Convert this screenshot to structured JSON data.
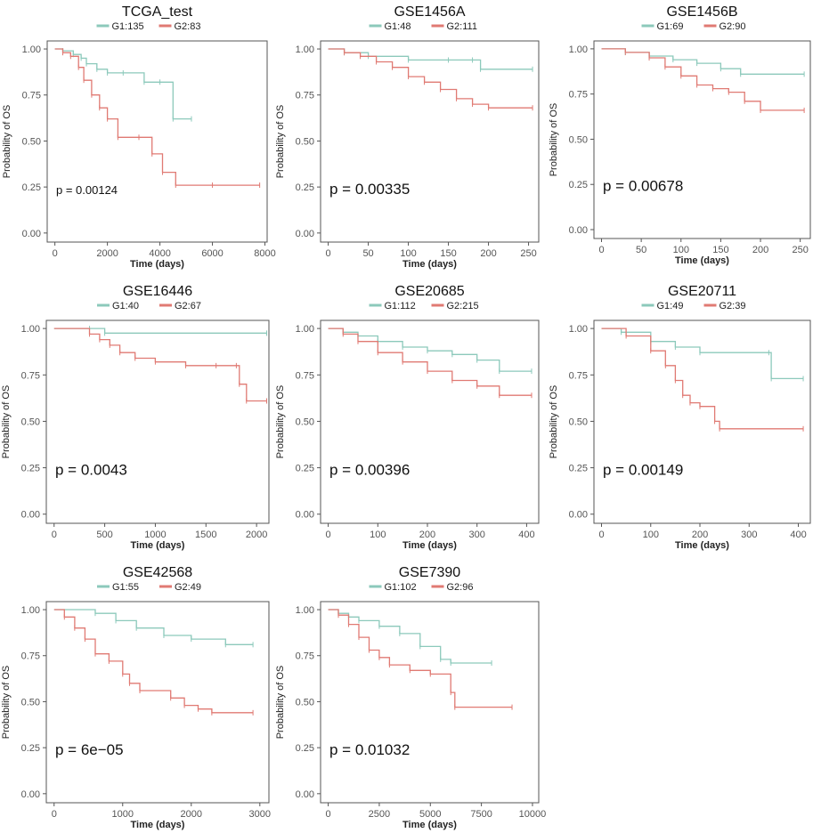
{
  "figure": {
    "ylabel": "Probability of OS",
    "xlabel": "Time (days)"
  },
  "colors": {
    "g1": "#8cc9bb",
    "g2": "#e07a73",
    "axis": "#333333",
    "tick": "#555555",
    "frame": "#555555"
  },
  "chart_data": [
    {
      "type": "line",
      "title": "TCGA_test",
      "legend": [
        "G1:135",
        "G2:83"
      ],
      "pvalue": "p =  0.00124",
      "xlabel": "Time (days)",
      "ylabel": "Probability of OS",
      "xlim": [
        0,
        8000
      ],
      "xticks": [
        0,
        2000,
        4000,
        6000,
        8000
      ],
      "ylim": [
        0,
        1
      ],
      "yticks": [
        0.0,
        0.25,
        0.5,
        0.75,
        1.0
      ],
      "series": [
        {
          "name": "G1",
          "x": [
            0,
            300,
            700,
            1000,
            1200,
            1600,
            2000,
            2600,
            3400,
            4000,
            4500,
            5200
          ],
          "y": [
            1.0,
            0.99,
            0.97,
            0.95,
            0.92,
            0.89,
            0.87,
            0.87,
            0.82,
            0.82,
            0.62,
            0.62
          ]
        },
        {
          "name": "G2",
          "x": [
            0,
            300,
            600,
            900,
            1100,
            1400,
            1700,
            2000,
            2400,
            3200,
            3700,
            4100,
            4600,
            6000,
            7800
          ],
          "y": [
            1.0,
            0.98,
            0.96,
            0.9,
            0.83,
            0.75,
            0.68,
            0.62,
            0.52,
            0.52,
            0.43,
            0.33,
            0.26,
            0.26,
            0.26
          ]
        }
      ]
    },
    {
      "type": "line",
      "title": "GSE1456A",
      "legend": [
        "G1:48",
        "G2:111"
      ],
      "pvalue": "p =  0.00335",
      "xlabel": "Time (days)",
      "ylabel": "Probability of OS",
      "xlim": [
        0,
        260
      ],
      "xticks": [
        0,
        50,
        100,
        150,
        200,
        250
      ],
      "ylim": [
        0,
        1
      ],
      "yticks": [
        0.0,
        0.25,
        0.5,
        0.75,
        1.0
      ],
      "series": [
        {
          "name": "G1",
          "x": [
            0,
            20,
            50,
            100,
            150,
            180,
            190,
            255
          ],
          "y": [
            1.0,
            0.98,
            0.96,
            0.94,
            0.94,
            0.94,
            0.89,
            0.89
          ]
        },
        {
          "name": "G2",
          "x": [
            0,
            20,
            40,
            60,
            80,
            100,
            120,
            140,
            160,
            180,
            200,
            255
          ],
          "y": [
            1.0,
            0.98,
            0.96,
            0.93,
            0.9,
            0.85,
            0.82,
            0.78,
            0.73,
            0.7,
            0.68,
            0.68
          ]
        }
      ]
    },
    {
      "type": "line",
      "title": "GSE1456B",
      "legend": [
        "G1:69",
        "G2:90"
      ],
      "pvalue": "p =  0.00678",
      "xlabel": "Time (days)",
      "ylabel": "Probability of OS",
      "xlim": [
        0,
        260
      ],
      "xticks": [
        0,
        50,
        100,
        150,
        200,
        250
      ],
      "ylim": [
        0,
        1
      ],
      "yticks": [
        0.0,
        0.25,
        0.5,
        0.75,
        1.0
      ],
      "series": [
        {
          "name": "G1",
          "x": [
            0,
            30,
            60,
            90,
            120,
            150,
            175,
            255
          ],
          "y": [
            1.0,
            0.98,
            0.96,
            0.94,
            0.92,
            0.89,
            0.86,
            0.86
          ]
        },
        {
          "name": "G2",
          "x": [
            0,
            30,
            60,
            80,
            100,
            120,
            140,
            160,
            180,
            200,
            255
          ],
          "y": [
            1.0,
            0.98,
            0.95,
            0.9,
            0.85,
            0.8,
            0.78,
            0.76,
            0.71,
            0.66,
            0.66
          ]
        }
      ]
    },
    {
      "type": "line",
      "title": "GSE16446",
      "legend": [
        "G1:40",
        "G2:67"
      ],
      "pvalue": "p =  0.0043",
      "xlabel": "Time (days)",
      "ylabel": "Probability of OS",
      "xlim": [
        0,
        2100
      ],
      "xticks": [
        0,
        500,
        1000,
        1500,
        2000
      ],
      "ylim": [
        0,
        1
      ],
      "yticks": [
        0.0,
        0.25,
        0.5,
        0.75,
        1.0
      ],
      "series": [
        {
          "name": "G1",
          "x": [
            0,
            350,
            500,
            2100
          ],
          "y": [
            1.0,
            1.0,
            0.975,
            0.975
          ]
        },
        {
          "name": "G2",
          "x": [
            0,
            350,
            450,
            550,
            650,
            800,
            1000,
            1300,
            1600,
            1800,
            1830,
            1900,
            2100
          ],
          "y": [
            1.0,
            0.97,
            0.94,
            0.91,
            0.87,
            0.84,
            0.82,
            0.8,
            0.8,
            0.8,
            0.7,
            0.61,
            0.61
          ]
        }
      ]
    },
    {
      "type": "line",
      "title": "GSE20685",
      "legend": [
        "G1:112",
        "G2:215"
      ],
      "pvalue": "p =  0.00396",
      "xlabel": "Time (days)",
      "ylabel": "Probability of OS",
      "xlim": [
        0,
        420
      ],
      "xticks": [
        0,
        100,
        200,
        300,
        400
      ],
      "ylim": [
        0,
        1
      ],
      "yticks": [
        0.0,
        0.25,
        0.5,
        0.75,
        1.0
      ],
      "series": [
        {
          "name": "G1",
          "x": [
            0,
            30,
            60,
            100,
            150,
            200,
            250,
            300,
            345,
            410
          ],
          "y": [
            1.0,
            0.98,
            0.96,
            0.93,
            0.9,
            0.88,
            0.86,
            0.83,
            0.77,
            0.77
          ]
        },
        {
          "name": "G2",
          "x": [
            0,
            30,
            60,
            100,
            150,
            200,
            250,
            300,
            345,
            410
          ],
          "y": [
            1.0,
            0.97,
            0.93,
            0.87,
            0.82,
            0.77,
            0.72,
            0.69,
            0.64,
            0.64
          ]
        }
      ]
    },
    {
      "type": "line",
      "title": "GSE20711",
      "legend": [
        "G1:49",
        "G2:39"
      ],
      "pvalue": "p =  0.00149",
      "xlabel": "Time (days)",
      "ylabel": "Probability of OS",
      "xlim": [
        0,
        420
      ],
      "xticks": [
        0,
        100,
        200,
        300,
        400
      ],
      "ylim": [
        0,
        1
      ],
      "yticks": [
        0.0,
        0.25,
        0.5,
        0.75,
        1.0
      ],
      "series": [
        {
          "name": "G1",
          "x": [
            0,
            40,
            100,
            150,
            200,
            340,
            345,
            410
          ],
          "y": [
            1.0,
            0.98,
            0.93,
            0.9,
            0.87,
            0.87,
            0.73,
            0.73
          ]
        },
        {
          "name": "G2",
          "x": [
            0,
            50,
            100,
            130,
            150,
            165,
            180,
            200,
            230,
            240,
            410
          ],
          "y": [
            1.0,
            0.96,
            0.88,
            0.8,
            0.72,
            0.64,
            0.6,
            0.58,
            0.5,
            0.46,
            0.46
          ]
        }
      ]
    },
    {
      "type": "line",
      "title": "GSE42568",
      "legend": [
        "G1:55",
        "G2:49"
      ],
      "pvalue": "p =  6e−05",
      "xlabel": "Time (days)",
      "ylabel": "Probability of OS",
      "xlim": [
        0,
        3100
      ],
      "xticks": [
        0,
        1000,
        2000,
        3000
      ],
      "ylim": [
        0,
        1
      ],
      "yticks": [
        0.0,
        0.25,
        0.5,
        0.75,
        1.0
      ],
      "series": [
        {
          "name": "G1",
          "x": [
            0,
            600,
            900,
            1200,
            1600,
            2000,
            2500,
            2900
          ],
          "y": [
            1.0,
            0.98,
            0.94,
            0.9,
            0.86,
            0.84,
            0.81,
            0.81
          ]
        },
        {
          "name": "G2",
          "x": [
            0,
            150,
            300,
            450,
            600,
            800,
            1000,
            1100,
            1250,
            1700,
            1900,
            2100,
            2300,
            2900
          ],
          "y": [
            1.0,
            0.96,
            0.9,
            0.84,
            0.76,
            0.72,
            0.65,
            0.6,
            0.56,
            0.52,
            0.48,
            0.46,
            0.44,
            0.44
          ]
        }
      ]
    },
    {
      "type": "line",
      "title": "GSE7390",
      "legend": [
        "G1:102",
        "G2:96"
      ],
      "pvalue": "p =  0.01032",
      "xlabel": "Time (days)",
      "ylabel": "Probability of OS",
      "xlim": [
        0,
        10200
      ],
      "xticks": [
        0,
        2500,
        5000,
        7500,
        10000
      ],
      "ylim": [
        0,
        1
      ],
      "yticks": [
        0.0,
        0.25,
        0.5,
        0.75,
        1.0
      ],
      "series": [
        {
          "name": "G1",
          "x": [
            0,
            500,
            1000,
            1500,
            2500,
            3500,
            4500,
            5500,
            6000,
            8000
          ],
          "y": [
            1.0,
            0.98,
            0.96,
            0.94,
            0.91,
            0.87,
            0.8,
            0.73,
            0.71,
            0.71
          ]
        },
        {
          "name": "G2",
          "x": [
            0,
            500,
            1000,
            1500,
            2000,
            2500,
            3000,
            4000,
            5000,
            6000,
            6200,
            9000
          ],
          "y": [
            1.0,
            0.97,
            0.92,
            0.85,
            0.78,
            0.74,
            0.7,
            0.67,
            0.65,
            0.55,
            0.47,
            0.47
          ]
        }
      ]
    }
  ]
}
